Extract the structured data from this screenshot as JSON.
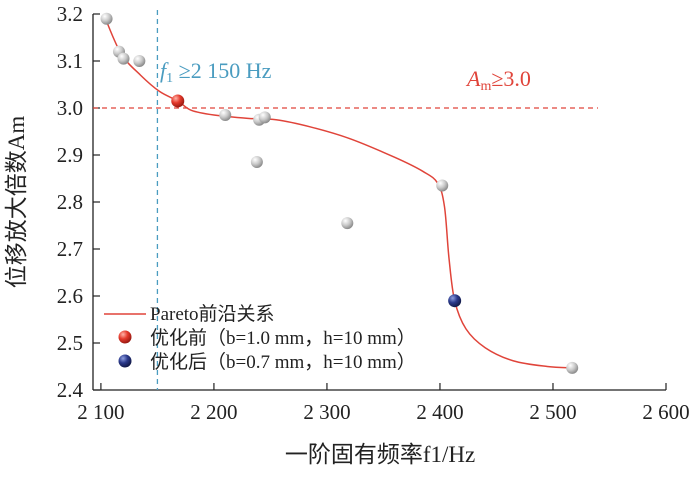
{
  "chart_data": {
    "type": "scatter",
    "xlabel": "一阶固有频率f1/Hz",
    "ylabel": "位移放大倍数Am",
    "xlim": [
      2093,
      2600
    ],
    "ylim": [
      2.4,
      3.2
    ],
    "xticks": [
      2100,
      2200,
      2300,
      2400,
      2500,
      2600
    ],
    "xtick_labels": [
      "2 100",
      "2 200",
      "2 300",
      "2 400",
      "2 500",
      "2 600"
    ],
    "yticks": [
      2.4,
      2.5,
      2.6,
      2.7,
      2.8,
      2.9,
      3.0,
      3.1,
      3.2
    ],
    "ytick_labels": [
      "2.4",
      "2.5",
      "2.6",
      "2.7",
      "2.8",
      "2.9",
      "3.0",
      "3.1",
      "3.2"
    ],
    "grid": false,
    "legend_position": "bottom-left",
    "legend": [
      {
        "label": "Pareto前沿关系",
        "kind": "line",
        "color": "#e0443a"
      },
      {
        "label": "优化前（b=1.0 mm，h=10 mm）",
        "kind": "marker",
        "color": "#e0443a"
      },
      {
        "label": "优化后（b=0.7 mm，h=10 mm）",
        "kind": "marker",
        "color": "#2b3a8c"
      }
    ],
    "points": [
      {
        "x": 2105,
        "y": 3.19
      },
      {
        "x": 2116,
        "y": 3.12
      },
      {
        "x": 2120,
        "y": 3.105
      },
      {
        "x": 2134,
        "y": 3.1
      },
      {
        "x": 2210,
        "y": 2.985
      },
      {
        "x": 2238,
        "y": 2.885
      },
      {
        "x": 2240,
        "y": 2.975
      },
      {
        "x": 2245,
        "y": 2.98
      },
      {
        "x": 2318,
        "y": 2.755
      },
      {
        "x": 2402,
        "y": 2.835
      },
      {
        "x": 2517,
        "y": 2.447
      }
    ],
    "before_point": {
      "x": 2168,
      "y": 3.015
    },
    "after_point": {
      "x": 2413,
      "y": 2.59
    },
    "pareto_front": [
      {
        "x": 2104,
        "y": 3.19
      },
      {
        "x": 2118,
        "y": 3.115
      },
      {
        "x": 2135,
        "y": 3.07
      },
      {
        "x": 2152,
        "y": 3.035
      },
      {
        "x": 2168,
        "y": 3.015
      },
      {
        "x": 2180,
        "y": 2.995
      },
      {
        "x": 2200,
        "y": 2.985
      },
      {
        "x": 2230,
        "y": 2.978
      },
      {
        "x": 2255,
        "y": 2.975
      },
      {
        "x": 2285,
        "y": 2.96
      },
      {
        "x": 2320,
        "y": 2.935
      },
      {
        "x": 2360,
        "y": 2.895
      },
      {
        "x": 2385,
        "y": 2.865
      },
      {
        "x": 2398,
        "y": 2.84
      },
      {
        "x": 2404,
        "y": 2.79
      },
      {
        "x": 2408,
        "y": 2.68
      },
      {
        "x": 2413,
        "y": 2.59
      },
      {
        "x": 2423,
        "y": 2.53
      },
      {
        "x": 2440,
        "y": 2.49
      },
      {
        "x": 2465,
        "y": 2.462
      },
      {
        "x": 2495,
        "y": 2.45
      },
      {
        "x": 2517,
        "y": 2.447
      }
    ],
    "thresholds": {
      "frequency": {
        "x": 2150,
        "label_f": "f",
        "label_sub": "1",
        "label_rest": " ≥2 150 Hz",
        "color": "#4a9cc0"
      },
      "amplification": {
        "y": 3.0,
        "label_a": "A",
        "label_sub": "m",
        "label_rest": "≥3.0",
        "color": "#e0443a"
      }
    }
  }
}
